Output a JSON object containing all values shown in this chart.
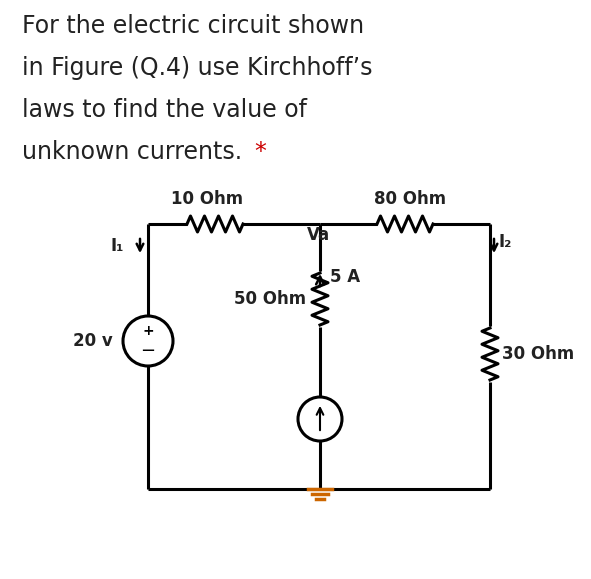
{
  "background_color": "#ffffff",
  "text_color": "#222222",
  "red_color": "#cc0000",
  "line1": "For the electric circuit shown",
  "line2": "in Figure (Q.4) use Kirchhoff’s",
  "line3": "laws to find the value of",
  "line4": "unknown currents. ",
  "question_star": "*",
  "label_10ohm": "10 Ohm",
  "label_80ohm": "80 Ohm",
  "label_50ohm": "50 Ohm",
  "label_30ohm": "30 Ohm",
  "label_va": "Va",
  "label_5a": "5 A",
  "label_i1": "I₁",
  "label_i2": "I₂",
  "label_20v": "20 v",
  "lc": "#000000",
  "lw": 2.2,
  "figsize": [
    5.91,
    5.79
  ],
  "dpi": 100
}
